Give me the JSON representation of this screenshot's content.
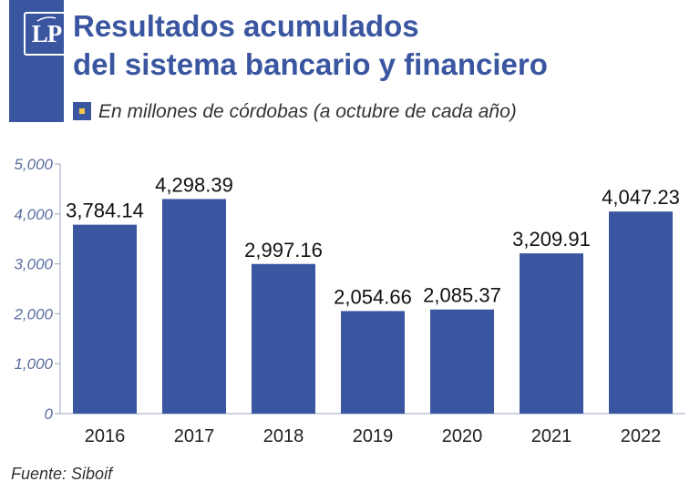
{
  "header": {
    "title_line1": "Resultados acumulados",
    "title_line2": "del sistema bancario y financiero",
    "subtitle": "En millones de córdobas (a octubre de cada año)",
    "logo_text": "LP"
  },
  "colors": {
    "brand": "#3a56a0",
    "bar": "#3a56a0",
    "accent": "#f3c64a",
    "axis_text": "#5a6f9e"
  },
  "chart_data": {
    "type": "bar",
    "title": "Resultados acumulados del sistema bancario y financiero",
    "subtitle": "En millones de córdobas (a octubre de cada año)",
    "categories": [
      "2016",
      "2017",
      "2018",
      "2019",
      "2020",
      "2021",
      "2022"
    ],
    "values": [
      3784.14,
      4298.39,
      2997.16,
      2054.66,
      2085.37,
      3209.91,
      4047.23
    ],
    "data_labels": [
      "3,784.14",
      "4,298.39",
      "2,997.16",
      "2,054.66",
      "2,085.37",
      "3,209.91",
      "4,047.23"
    ],
    "ylim": [
      0,
      5000
    ],
    "yticks": [
      0,
      1000,
      2000,
      3000,
      4000,
      5000
    ],
    "ytick_labels": [
      "0",
      "1,000",
      "2,000",
      "3,000",
      "4,000",
      "5,000"
    ],
    "xlabel": "",
    "ylabel": "",
    "grid": false,
    "legend": false
  },
  "source": "Fuente: Siboif"
}
